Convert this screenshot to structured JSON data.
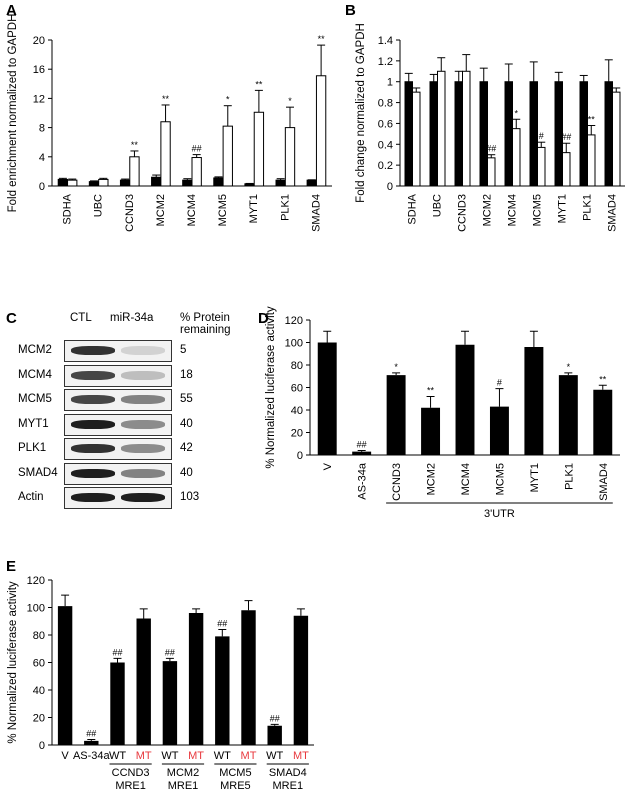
{
  "panels": {
    "A": {
      "label": "A",
      "ylabel": "Fold enrichment normalized to GAPDH",
      "ylim": [
        0,
        20
      ],
      "yticks": [
        0,
        4,
        8,
        12,
        16,
        20
      ],
      "categories": [
        "SDHA",
        "UBC",
        "CCND3",
        "MCM2",
        "MCM4",
        "MCM5",
        "MYT1",
        "PLK1",
        "SMAD4"
      ],
      "series": [
        {
          "color": "#000000",
          "values": [
            0.9,
            0.6,
            0.8,
            1.2,
            0.8,
            1.1,
            0.3,
            0.8,
            0.8
          ],
          "errors": [
            0.15,
            0.1,
            0.15,
            0.3,
            0.2,
            0.15,
            0.05,
            0.2,
            0.05
          ]
        },
        {
          "color": "#ffffff",
          "values": [
            0.8,
            0.9,
            4.0,
            8.8,
            3.9,
            8.2,
            10.1,
            8.0,
            15.1
          ],
          "errors": [
            0.15,
            0.15,
            0.8,
            2.3,
            0.4,
            2.8,
            3.0,
            2.8,
            4.2
          ]
        }
      ],
      "annotations": [
        "",
        "",
        "**",
        "**",
        "##",
        "*",
        "**",
        "*",
        "**"
      ]
    },
    "B": {
      "label": "B",
      "ylabel": "Fold change normalized to GAPDH",
      "ylim": [
        0,
        1.4
      ],
      "yticks": [
        "0",
        "0.2",
        "0.4",
        "0.6",
        "0.8",
        "1",
        "1.2",
        "1.4"
      ],
      "categories": [
        "SDHA",
        "UBC",
        "CCND3",
        "MCM2",
        "MCM4",
        "MCM5",
        "MYT1",
        "PLK1",
        "SMAD4"
      ],
      "series": [
        {
          "color": "#000000",
          "values": [
            1,
            1,
            1,
            1,
            1,
            1,
            1,
            1,
            1
          ],
          "errors": [
            0.08,
            0.07,
            0.1,
            0.13,
            0.17,
            0.19,
            0.09,
            0.06,
            0.21
          ]
        },
        {
          "color": "#ffffff",
          "values": [
            0.9,
            1.1,
            1.1,
            0.27,
            0.55,
            0.37,
            0.32,
            0.49,
            0.9
          ],
          "errors": [
            0.04,
            0.13,
            0.16,
            0.03,
            0.09,
            0.05,
            0.09,
            0.09,
            0.04
          ]
        }
      ],
      "annotations": [
        "",
        "",
        "",
        "##",
        "*",
        "#",
        "##",
        "**",
        ""
      ]
    },
    "C": {
      "label": "C",
      "columns": [
        "CTL",
        "miR-34a"
      ],
      "pct_header": "% Protein\nremaining",
      "rows": [
        {
          "protein": "MCM2",
          "pct": "5",
          "ctl": 0.9,
          "mir": 0.1
        },
        {
          "protein": "MCM4",
          "pct": "18",
          "ctl": 0.8,
          "mir": 0.2
        },
        {
          "protein": "MCM5",
          "pct": "55",
          "ctl": 0.8,
          "mir": 0.5
        },
        {
          "protein": "MYT1",
          "pct": "40",
          "ctl": 1.0,
          "mir": 0.45
        },
        {
          "protein": "PLK1",
          "pct": "42",
          "ctl": 0.9,
          "mir": 0.45
        },
        {
          "protein": "SMAD4",
          "pct": "40",
          "ctl": 1.0,
          "mir": 0.5
        },
        {
          "protein": "Actin",
          "pct": "103",
          "ctl": 1.0,
          "mir": 1.0
        }
      ]
    },
    "D": {
      "label": "D",
      "ylabel": "% Normalized luciferase activity",
      "ylim": [
        0,
        120
      ],
      "yticks": [
        0,
        20,
        40,
        60,
        80,
        100,
        120
      ],
      "categories": [
        "V",
        "AS-34a",
        "CCND3",
        "MCM2",
        "MCM4",
        "MCM5",
        "MYT1",
        "PLK1",
        "SMAD4"
      ],
      "values": [
        100,
        3,
        71,
        42,
        98,
        43,
        96,
        71,
        58
      ],
      "errors": [
        10,
        1,
        2,
        10,
        12,
        16,
        14,
        2,
        4
      ],
      "annotations": [
        "",
        "##",
        "*",
        "**",
        "",
        "#",
        "",
        "*",
        "**"
      ],
      "group_label": "3'UTR"
    },
    "E": {
      "label": "E",
      "ylabel": "% Normalized luciferase activity",
      "ylim": [
        0,
        120
      ],
      "yticks": [
        0,
        20,
        40,
        60,
        80,
        100,
        120
      ],
      "bar_labels": [
        "V",
        "AS-34a",
        "WT",
        "MT",
        "WT",
        "MT",
        "WT",
        "MT",
        "WT",
        "MT"
      ],
      "label_colors": [
        "#000000",
        "#000000",
        "#000000",
        "#e8383d",
        "#000000",
        "#e8383d",
        "#000000",
        "#e8383d",
        "#000000",
        "#e8383d"
      ],
      "values": [
        101,
        3,
        60,
        92,
        61,
        96,
        79,
        98,
        14,
        94
      ],
      "errors": [
        8,
        1,
        3,
        7,
        2,
        3,
        5,
        7,
        1,
        5
      ],
      "annotations": [
        "",
        "##",
        "##",
        "",
        "##",
        "",
        "##",
        "",
        "##",
        ""
      ],
      "groups": [
        {
          "line1": "CCND3",
          "line2": "MRE1"
        },
        {
          "line1": "MCM2",
          "line2": "MRE1"
        },
        {
          "line1": "MCM5",
          "line2": "MRE5"
        },
        {
          "line1": "SMAD4",
          "line2": "MRE1"
        }
      ]
    }
  }
}
